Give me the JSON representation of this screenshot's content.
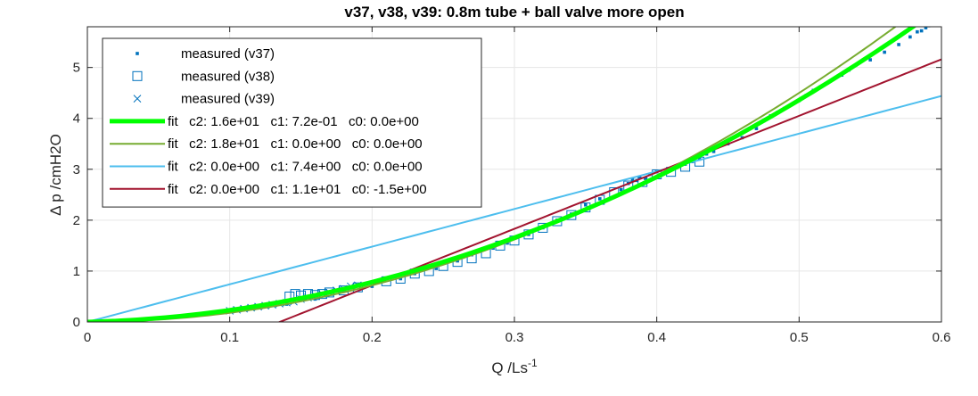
{
  "chart_data": {
    "type": "scatter",
    "title": "v37, v38, v39: 0.8m tube + ball valve more open",
    "xlabel": "Q /Ls",
    "xlabel_sup": "-1",
    "ylabel": "Δ p /cmH2O",
    "xlim": [
      0,
      0.6
    ],
    "ylim": [
      0,
      5.8
    ],
    "xticks": [
      0,
      0.1,
      0.2,
      0.3,
      0.4,
      0.5,
      0.6
    ],
    "xtick_labels": [
      "0",
      "0.1",
      "0.2",
      "0.3",
      "0.4",
      "0.5",
      "0.6"
    ],
    "yticks": [
      0,
      1,
      2,
      3,
      4,
      5
    ],
    "ytick_labels": [
      "0",
      "1",
      "2",
      "3",
      "4",
      "5"
    ],
    "grid": true,
    "legend_position": "top-left",
    "measured": [
      {
        "name": "measured (v37)",
        "marker": "dot",
        "color": "#0072BD",
        "points": [
          [
            0.375,
            2.6
          ],
          [
            0.38,
            2.72
          ],
          [
            0.383,
            2.8
          ],
          [
            0.386,
            2.78
          ],
          [
            0.388,
            2.85
          ],
          [
            0.392,
            2.82
          ],
          [
            0.395,
            2.9
          ],
          [
            0.4,
            2.95
          ],
          [
            0.405,
            2.92
          ],
          [
            0.41,
            3.0
          ],
          [
            0.415,
            3.05
          ],
          [
            0.42,
            3.1
          ],
          [
            0.425,
            3.15
          ],
          [
            0.43,
            3.2
          ],
          [
            0.435,
            3.3
          ],
          [
            0.44,
            3.35
          ],
          [
            0.45,
            3.5
          ],
          [
            0.46,
            3.62
          ],
          [
            0.47,
            3.8
          ],
          [
            0.475,
            3.95
          ],
          [
            0.48,
            4.05
          ],
          [
            0.485,
            4.12
          ],
          [
            0.49,
            4.2
          ],
          [
            0.5,
            4.35
          ],
          [
            0.505,
            4.45
          ],
          [
            0.51,
            4.55
          ],
          [
            0.515,
            4.62
          ],
          [
            0.52,
            4.7
          ],
          [
            0.53,
            4.85
          ],
          [
            0.535,
            4.95
          ],
          [
            0.54,
            5.05
          ],
          [
            0.55,
            5.15
          ],
          [
            0.56,
            5.3
          ],
          [
            0.57,
            5.45
          ],
          [
            0.578,
            5.6
          ],
          [
            0.583,
            5.7
          ],
          [
            0.586,
            5.72
          ],
          [
            0.589,
            5.78
          ],
          [
            0.591,
            5.82
          ],
          [
            0.36,
            2.42
          ],
          [
            0.35,
            2.3
          ],
          [
            0.34,
            2.12
          ],
          [
            0.33,
            2.0
          ],
          [
            0.32,
            1.85
          ],
          [
            0.31,
            1.72
          ],
          [
            0.295,
            1.55
          ],
          [
            0.285,
            1.45
          ],
          [
            0.27,
            1.32
          ],
          [
            0.26,
            1.2
          ],
          [
            0.245,
            1.05
          ],
          [
            0.23,
            0.95
          ],
          [
            0.22,
            0.85
          ],
          [
            0.2,
            0.7
          ],
          [
            0.18,
            0.6
          ],
          [
            0.16,
            0.45
          ],
          [
            0.14,
            0.35
          ],
          [
            0.12,
            0.28
          ]
        ]
      },
      {
        "name": "measured (v38)",
        "marker": "square",
        "color": "#0072BD",
        "points": [
          [
            0.142,
            0.5
          ],
          [
            0.146,
            0.55
          ],
          [
            0.15,
            0.52
          ],
          [
            0.155,
            0.55
          ],
          [
            0.16,
            0.53
          ],
          [
            0.165,
            0.55
          ],
          [
            0.17,
            0.58
          ],
          [
            0.18,
            0.62
          ],
          [
            0.19,
            0.68
          ],
          [
            0.21,
            0.8
          ],
          [
            0.22,
            0.85
          ],
          [
            0.23,
            0.95
          ],
          [
            0.24,
            1.0
          ],
          [
            0.25,
            1.1
          ],
          [
            0.26,
            1.18
          ],
          [
            0.27,
            1.25
          ],
          [
            0.28,
            1.35
          ],
          [
            0.29,
            1.5
          ],
          [
            0.3,
            1.6
          ],
          [
            0.31,
            1.72
          ],
          [
            0.32,
            1.85
          ],
          [
            0.33,
            1.98
          ],
          [
            0.34,
            2.1
          ],
          [
            0.35,
            2.25
          ],
          [
            0.36,
            2.4
          ],
          [
            0.37,
            2.55
          ],
          [
            0.38,
            2.68
          ],
          [
            0.39,
            2.75
          ],
          [
            0.4,
            2.9
          ],
          [
            0.41,
            2.95
          ],
          [
            0.42,
            3.05
          ],
          [
            0.43,
            3.15
          ]
        ]
      },
      {
        "name": "measured (v39)",
        "marker": "cross",
        "color": "#0072BD",
        "points": [
          [
            0.1,
            0.22
          ],
          [
            0.105,
            0.24
          ],
          [
            0.11,
            0.26
          ],
          [
            0.115,
            0.28
          ],
          [
            0.12,
            0.3
          ],
          [
            0.125,
            0.32
          ],
          [
            0.13,
            0.34
          ],
          [
            0.135,
            0.36
          ],
          [
            0.14,
            0.38
          ],
          [
            0.145,
            0.4
          ],
          [
            0.15,
            0.45
          ],
          [
            0.155,
            0.48
          ],
          [
            0.16,
            0.52
          ],
          [
            0.165,
            0.55
          ],
          [
            0.17,
            0.58
          ],
          [
            0.175,
            0.62
          ],
          [
            0.18,
            0.65
          ],
          [
            0.185,
            0.7
          ],
          [
            0.19,
            0.72
          ]
        ]
      }
    ],
    "fits": [
      {
        "name": "fit   c2: 1.6e+01   c1: 7.2e-01   c0: 0.0e+00",
        "c2": 16,
        "c1": 0.72,
        "c0": 0,
        "color": "#00FF00",
        "width": 5
      },
      {
        "name": "fit   c2: 1.8e+01   c1: 0.0e+00   c0: 0.0e+00",
        "c2": 18,
        "c1": 0,
        "c0": 0,
        "color": "#77AC30",
        "width": 2
      },
      {
        "name": "fit   c2: 0.0e+00   c1: 7.4e+00   c0: 0.0e+00",
        "c2": 0,
        "c1": 7.4,
        "c0": 0,
        "color": "#4DBEEE",
        "width": 2
      },
      {
        "name": "fit   c2: 0.0e+00   c1: 1.1e+01   c0: -1.5e+00",
        "c2": 0,
        "c1": 11.1,
        "c0": -1.5,
        "color": "#A2142F",
        "width": 2
      }
    ]
  }
}
